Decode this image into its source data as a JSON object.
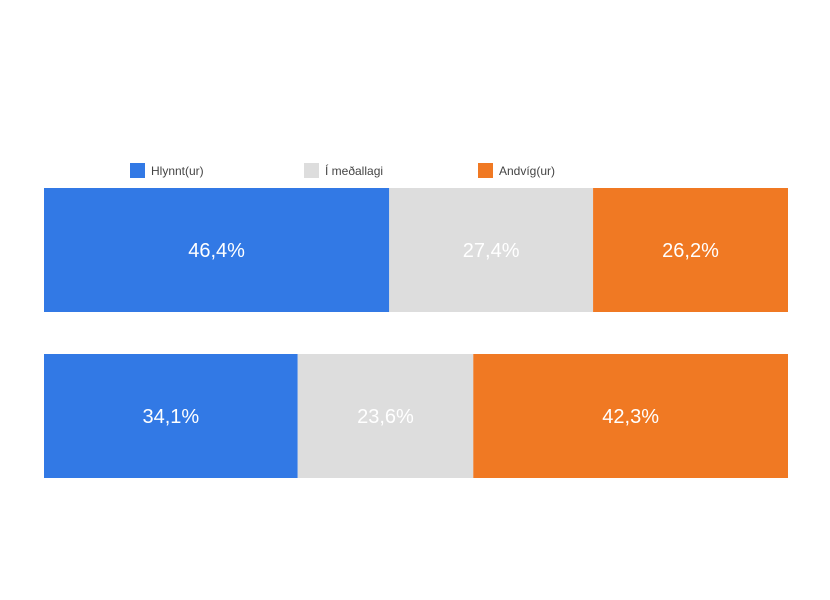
{
  "chart_data": {
    "type": "bar",
    "orientation": "horizontal",
    "stacked": "percent",
    "title": "",
    "categories": [
      "",
      ""
    ],
    "series": [
      {
        "name": "Hlynnt(ur)",
        "color": "#3279e5",
        "values": [
          46.4,
          34.1
        ],
        "labels": [
          "46,4%",
          "34,1%"
        ]
      },
      {
        "name": "Í meðallagi",
        "color": "#dddddd",
        "values": [
          27.4,
          23.6
        ],
        "labels": [
          "27,4%",
          "23,6%"
        ]
      },
      {
        "name": "Andvíg(ur)",
        "color": "#f07923",
        "values": [
          26.2,
          42.3
        ],
        "labels": [
          "26,2%",
          "42,3%"
        ]
      }
    ],
    "xlim": [
      0,
      100
    ],
    "grid": false,
    "legend_position": "top",
    "data_labels": true
  }
}
